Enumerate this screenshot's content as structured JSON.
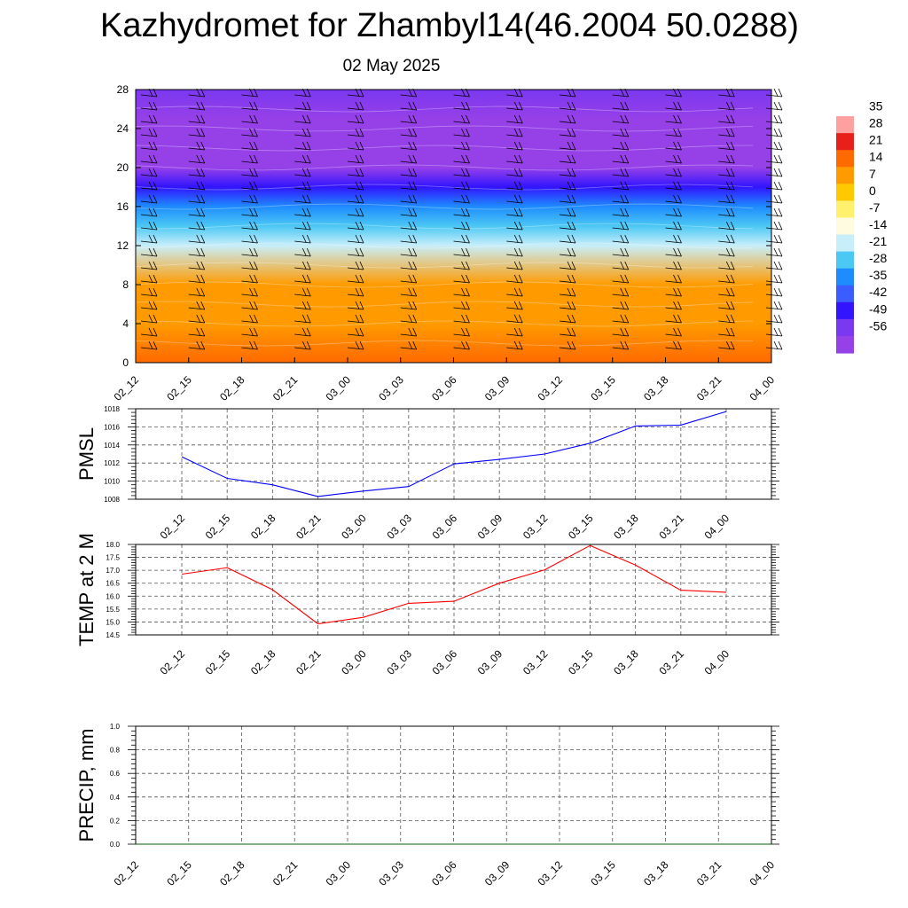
{
  "header": {
    "title": "Kazhydromet for Zhambyl14(46.2004 50.0288)",
    "date": "02 May 2025"
  },
  "chart_data": [
    {
      "type": "heatmap",
      "title": "",
      "xlabel": "",
      "ylabel": "",
      "x_ticks": [
        "02_12",
        "02_15",
        "02_18",
        "02_21",
        "03_00",
        "03_03",
        "03_06",
        "03_09",
        "03_12",
        "03_15",
        "03_18",
        "03_21",
        "04_00"
      ],
      "y_ticks": [
        0,
        4,
        8,
        12,
        16,
        20,
        24,
        28
      ],
      "ylim": [
        0,
        28
      ],
      "colorbar": {
        "labels": [
          "35",
          "28",
          "21",
          "14",
          "7",
          "0",
          "-7",
          "-14",
          "-21",
          "-28",
          "-35",
          "-42",
          "-49",
          "-56"
        ],
        "colors": [
          "#ffffff",
          "#ffa0a0",
          "#e8201c",
          "#ff6a00",
          "#ff9b00",
          "#ffc800",
          "#fff06e",
          "#fffbe0",
          "#c8eefa",
          "#4cc8f4",
          "#1e8cff",
          "#3b5cff",
          "#3214ff",
          "#7a38f0",
          "#9640e8"
        ]
      },
      "temperature_profile": [
        [
          0,
          15
        ],
        [
          4,
          12
        ],
        [
          8,
          7
        ],
        [
          12,
          -14
        ],
        [
          14,
          -21
        ],
        [
          16,
          -28
        ],
        [
          18,
          -42
        ],
        [
          20,
          -56
        ],
        [
          22,
          -58
        ],
        [
          25,
          -54
        ],
        [
          28,
          -50
        ]
      ],
      "wind_barbs": true,
      "grid": false
    },
    {
      "type": "line",
      "title": "",
      "ylabel": "PMSL",
      "x": [
        "02_12",
        "02_15",
        "02_18",
        "02_21",
        "03_00",
        "03_03",
        "03_06",
        "03_09",
        "03_12",
        "03_15",
        "03_18",
        "03_21",
        "04_00"
      ],
      "y_ticks": [
        "1008",
        "1010",
        "1012",
        "1014",
        "1016",
        "1018"
      ],
      "ylim": [
        1008,
        1018
      ],
      "series": [
        {
          "values": [
            1012.7,
            1010.3,
            1009.6,
            1008.3,
            1008.9,
            1009.4,
            1011.9,
            1012.4,
            1013.0,
            1014.2,
            1016.1,
            1016.2,
            1017.7
          ],
          "color": "#0000ff"
        }
      ],
      "grid": true
    },
    {
      "type": "line",
      "title": "",
      "ylabel": "TEMP at 2 M",
      "x": [
        "02_12",
        "02_15",
        "02_18",
        "02_21",
        "03_00",
        "03_03",
        "03_06",
        "03_09",
        "03_12",
        "03_15",
        "03_18",
        "03_21",
        "04_00"
      ],
      "y_ticks": [
        "14.5",
        "15.0",
        "15.5",
        "16.0",
        "16.5",
        "17.0",
        "17.5",
        "18.0"
      ],
      "ylim": [
        14.5,
        18.0
      ],
      "series": [
        {
          "values": [
            16.85,
            17.1,
            16.25,
            14.93,
            15.18,
            15.72,
            15.8,
            16.5,
            17.02,
            17.96,
            17.2,
            16.23,
            16.15
          ],
          "color": "#ff0000"
        }
      ],
      "grid": true
    },
    {
      "type": "line",
      "title": "",
      "ylabel": "PRECIP, mm",
      "x": [
        "02_12",
        "02_15",
        "02_18",
        "02_21",
        "03_00",
        "03_03",
        "03_06",
        "03_09",
        "03_12",
        "03_15",
        "03_18",
        "03_21",
        "04_00"
      ],
      "y_ticks": [
        "0.0",
        "0.2",
        "0.4",
        "0.6",
        "0.8",
        "1.0"
      ],
      "ylim": [
        0,
        1.0
      ],
      "series": [
        {
          "values": [
            0,
            0,
            0,
            0,
            0,
            0,
            0,
            0,
            0,
            0,
            0,
            0,
            0
          ],
          "color": "#006400"
        }
      ],
      "grid": true
    }
  ]
}
